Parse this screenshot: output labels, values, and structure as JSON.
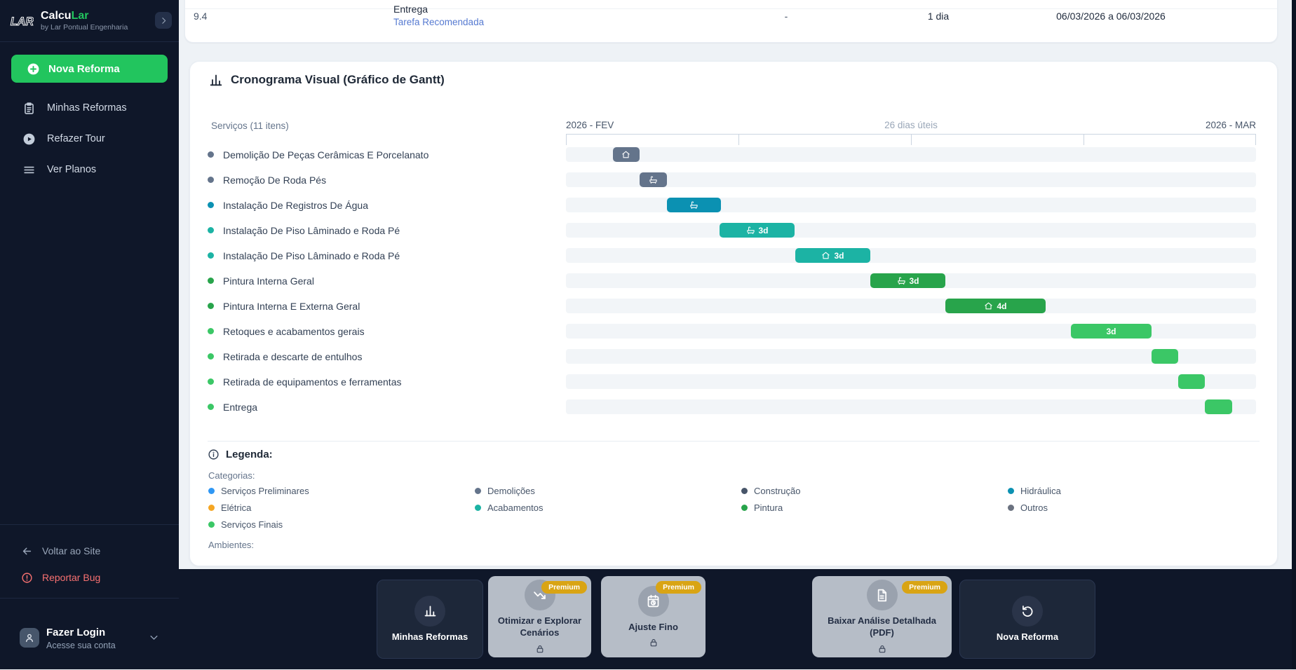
{
  "sidebar": {
    "brand": {
      "name_prefix": "Calcu",
      "name_suffix": "Lar",
      "tagline": "by Lar Pontual Engenharia"
    },
    "primary_action": {
      "label": "Nova Reforma",
      "icon": "plus-circle"
    },
    "nav": [
      {
        "label": "Minhas Reformas",
        "icon": "clipboard"
      },
      {
        "label": "Refazer Tour",
        "icon": "play-circle"
      },
      {
        "label": "Ver Planos",
        "icon": "list-lines"
      }
    ],
    "footer_links": [
      {
        "label": "Voltar ao Site",
        "icon": "arrow-left",
        "style": "muted"
      },
      {
        "label": "Reportar Bug",
        "icon": "alert-circle",
        "style": "danger"
      }
    ],
    "login": {
      "title": "Fazer Login",
      "subtitle": "Acesse sua conta"
    }
  },
  "table_row": {
    "index": "9.4",
    "task_name": "Entrega",
    "task_tag": "Tarefa Recomendada",
    "quantity": "-",
    "duration": "1 dia",
    "date_range": "06/03/2026 a 06/03/2026"
  },
  "gantt": {
    "title": "Cronograma Visual (Gráfico de Gantt)",
    "services_label": "Serviços (11 itens)",
    "timeline": {
      "start": "2026 - FEV",
      "middle": "26 dias úteis",
      "end": "2026 - MAR",
      "tick_positions_pct": [
        0,
        25,
        50,
        75,
        100
      ]
    },
    "category_colors": {
      "preliminares": "#2f97f4",
      "demolicoes": "#64748b",
      "construcao": "#475569",
      "hidraulica": "#0b91b2",
      "eletrica": "#f5a623",
      "acabamentos": "#1cb3a4",
      "pintura": "#28a44b",
      "outros": "#6b7280",
      "servicos_finais": "#3bc766"
    },
    "rows": [
      {
        "label": "Demolição De Peças Cerâmicas E Porcelanato",
        "category": "demolicoes",
        "bar": {
          "left_pct": 6.81,
          "width_pct": 3.86,
          "icon": "home",
          "text": ""
        }
      },
      {
        "label": "Remoção De Roda Pés",
        "category": "demolicoes",
        "bar": {
          "left_pct": 10.67,
          "width_pct": 3.96,
          "icon": "bath",
          "text": ""
        }
      },
      {
        "label": "Instalação De Registros De Água",
        "category": "hidraulica",
        "bar": {
          "left_pct": 14.63,
          "width_pct": 7.83,
          "icon": "bath",
          "text": ""
        }
      },
      {
        "label": "Instalação De Piso Lâminado e Roda Pé",
        "category": "acabamentos",
        "bar": {
          "left_pct": 22.26,
          "width_pct": 10.87,
          "icon": "bath",
          "text": "3d"
        }
      },
      {
        "label": "Instalação De Piso Lâminado e Roda Pé",
        "category": "acabamentos",
        "bar": {
          "left_pct": 33.23,
          "width_pct": 10.87,
          "icon": "home",
          "text": "3d"
        }
      },
      {
        "label": "Pintura Interna Geral",
        "category": "pintura",
        "bar": {
          "left_pct": 44.11,
          "width_pct": 10.87,
          "icon": "bath",
          "text": "3d"
        }
      },
      {
        "label": "Pintura Interna E Externa Geral",
        "category": "pintura",
        "bar": {
          "left_pct": 54.98,
          "width_pct": 14.53,
          "icon": "home",
          "text": "4d"
        }
      },
      {
        "label": "Retoques e acabamentos gerais",
        "category": "servicos_finais",
        "bar": {
          "left_pct": 73.17,
          "width_pct": 11.69,
          "icon": "",
          "text": "3d"
        }
      },
      {
        "label": "Retirada e descarte de entulhos",
        "category": "servicos_finais",
        "bar": {
          "left_pct": 84.86,
          "width_pct": 3.86,
          "icon": "",
          "text": ""
        }
      },
      {
        "label": "Retirada de equipamentos e ferramentas",
        "category": "servicos_finais",
        "bar": {
          "left_pct": 88.72,
          "width_pct": 3.86,
          "icon": "",
          "text": ""
        }
      },
      {
        "label": "Entrega",
        "category": "servicos_finais",
        "bar": {
          "left_pct": 92.58,
          "width_pct": 3.96,
          "icon": "",
          "text": ""
        }
      }
    ]
  },
  "legend": {
    "heading": "Legenda:",
    "categories_label": "Categorias:",
    "items": [
      {
        "label": "Serviços Preliminares",
        "category": "preliminares"
      },
      {
        "label": "Demolições",
        "category": "demolicoes"
      },
      {
        "label": "Construção",
        "category": "construcao"
      },
      {
        "label": "Hidráulica",
        "category": "hidraulica"
      },
      {
        "label": "Elétrica",
        "category": "eletrica"
      },
      {
        "label": "Acabamentos",
        "category": "acabamentos"
      },
      {
        "label": "Pintura",
        "category": "pintura"
      },
      {
        "label": "Outros",
        "category": "outros"
      },
      {
        "label": "Serviços Finais",
        "category": "servicos_finais"
      }
    ],
    "ambientes_label": "Ambientes:"
  },
  "action_bar": {
    "premium_badge": "Premium",
    "buttons": [
      {
        "label": "Minhas Reformas",
        "icon": "bar-chart",
        "variant": "dark",
        "premium": false
      },
      {
        "label": "Otimizar e Explorar Cenários",
        "icon": "trend-down",
        "variant": "light",
        "premium": true
      },
      {
        "label": "Ajuste Fino",
        "icon": "calendar-clock",
        "variant": "light",
        "premium": true
      },
      {
        "label": "Baixar Análise Detalhada (PDF)",
        "icon": "document",
        "variant": "light",
        "premium": true
      },
      {
        "label": "Nova Reforma",
        "icon": "reset",
        "variant": "dark",
        "premium": false
      }
    ]
  }
}
